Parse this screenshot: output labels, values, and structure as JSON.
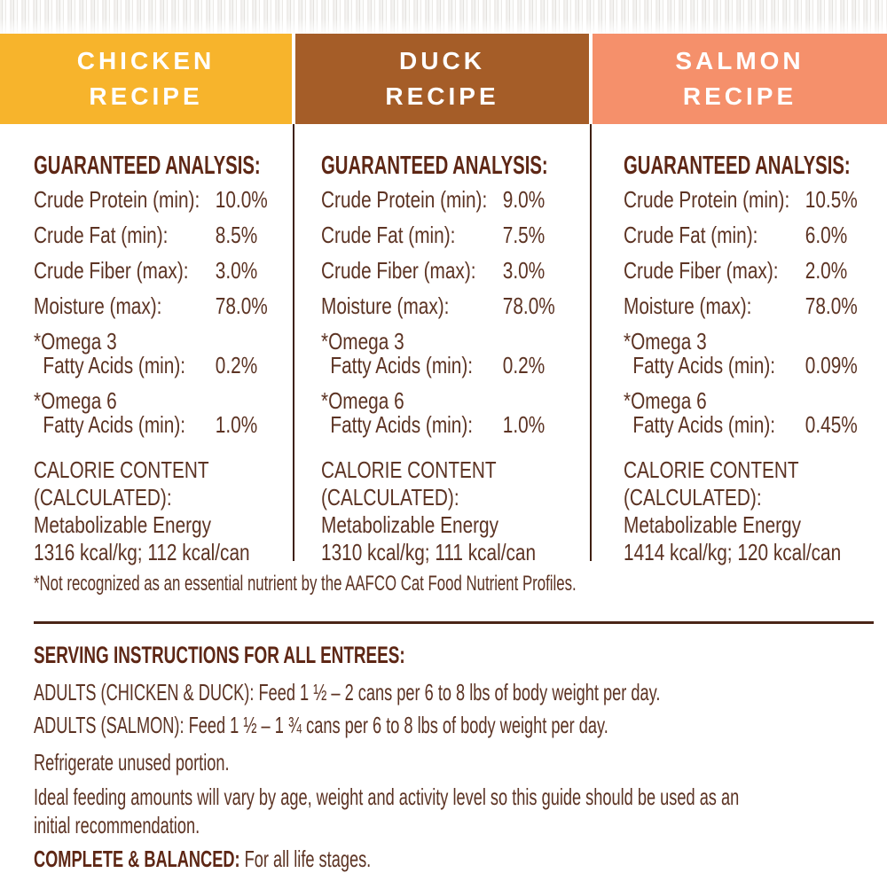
{
  "columns": [
    {
      "title_line1": "CHICKEN",
      "title_line2": "RECIPE",
      "color": "#F7B42C",
      "section_heading": "GUARANTEED ANALYSIS:",
      "rows": [
        {
          "label": "Crude Protein (min):",
          "value": "10.0%"
        },
        {
          "label": "Crude Fat (min):",
          "value": "8.5%"
        },
        {
          "label": "Crude Fiber (max):",
          "value": "3.0%"
        },
        {
          "label": "Moisture (max):",
          "value": "78.0%"
        },
        {
          "label_line1": "*Omega 3",
          "label_line2": "Fatty Acids (min):",
          "value": "0.2%"
        },
        {
          "label_line1": "*Omega 6",
          "label_line2": "Fatty Acids (min):",
          "value": "1.0%"
        }
      ],
      "calorie": [
        "CALORIE CONTENT",
        "(CALCULATED):",
        "Metabolizable Energy",
        "1316 kcal/kg; 112 kcal/can"
      ]
    },
    {
      "title_line1": "DUCK",
      "title_line2": "RECIPE",
      "color": "#A55D28",
      "section_heading": "GUARANTEED ANALYSIS:",
      "rows": [
        {
          "label": "Crude Protein (min):",
          "value": "9.0%"
        },
        {
          "label": "Crude Fat (min):",
          "value": "7.5%"
        },
        {
          "label": "Crude Fiber (max):",
          "value": "3.0%"
        },
        {
          "label": "Moisture (max):",
          "value": "78.0%"
        },
        {
          "label_line1": "*Omega 3",
          "label_line2": "Fatty Acids (min):",
          "value": "0.2%"
        },
        {
          "label_line1": "*Omega 6",
          "label_line2": "Fatty Acids (min):",
          "value": "1.0%"
        }
      ],
      "calorie": [
        "CALORIE CONTENT",
        "(CALCULATED):",
        "Metabolizable Energy",
        "1310 kcal/kg; 111 kcal/can"
      ]
    },
    {
      "title_line1": "SALMON",
      "title_line2": "RECIPE",
      "color": "#F5906B",
      "section_heading": "GUARANTEED ANALYSIS:",
      "rows": [
        {
          "label": "Crude Protein (min):",
          "value": "10.5%"
        },
        {
          "label": "Crude Fat (min):",
          "value": "6.0%"
        },
        {
          "label": "Crude Fiber (max):",
          "value": "2.0%"
        },
        {
          "label": "Moisture (max):",
          "value": "78.0%"
        },
        {
          "label_line1": "*Omega 3",
          "label_line2": "Fatty Acids (min):",
          "value": "0.09%"
        },
        {
          "label_line1": "*Omega 6",
          "label_line2": "Fatty Acids (min):",
          "value": "0.45%"
        }
      ],
      "calorie": [
        "CALORIE CONTENT",
        "(CALCULATED):",
        "Metabolizable Energy",
        "1414 kcal/kg; 120 kcal/can"
      ]
    }
  ],
  "footnote": "*Not recognized as an essential nutrient by the AAFCO Cat Food Nutrient Profiles.",
  "serving": {
    "heading": "SERVING INSTRUCTIONS FOR ALL ENTREES:",
    "line_chicken_duck": "ADULTS (CHICKEN & DUCK): Feed 1 ½ – 2 cans per 6 to 8 lbs of body weight per day.",
    "line_salmon": "ADULTS (SALMON): Feed 1 ½ – 1 ¾ cans per 6 to 8 lbs of body weight per day.",
    "refrigerate": "Refrigerate unused portion.",
    "ideal": "Ideal feeding amounts will vary by age, weight and activity level so this guide should be used as an initial recommendation.",
    "complete_label": "COMPLETE & BALANCED:",
    "complete_text": " For all life stages."
  }
}
